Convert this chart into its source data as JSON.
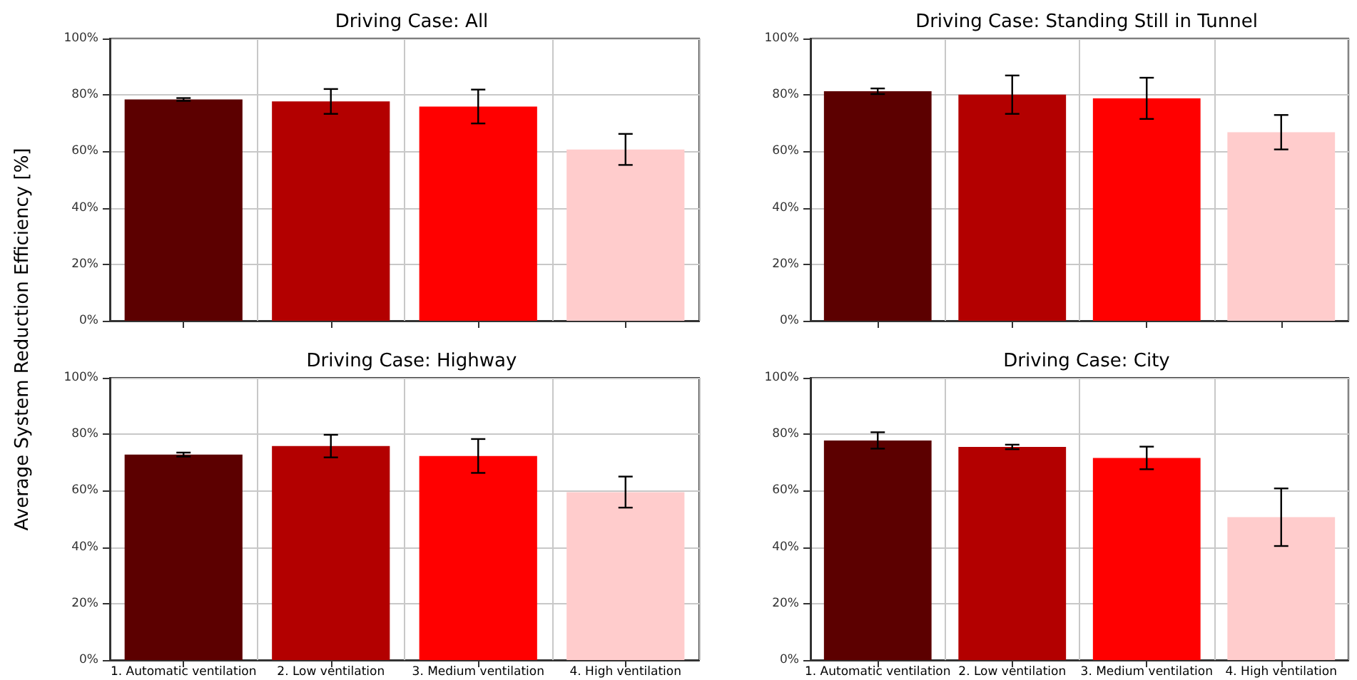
{
  "chart_data": [
    {
      "type": "bar",
      "title": "Driving Case: All",
      "ylabel": "Average System Reduction Efficiency [%]",
      "categories": [
        null,
        null,
        null,
        null
      ],
      "values": [
        78.4,
        77.7,
        75.9,
        60.7
      ],
      "errors": [
        0.5,
        4.4,
        6,
        5.5
      ],
      "colors": [
        "#5c0000",
        "#b30000",
        "#ff0000",
        "#ffcccc"
      ],
      "ylim": [
        0,
        100
      ],
      "yticks": [
        {
          "value": 0,
          "label": "0%"
        },
        {
          "value": 20,
          "label": "20%"
        },
        {
          "value": 40,
          "label": "40%"
        },
        {
          "value": 60,
          "label": "60%"
        },
        {
          "value": 80,
          "label": "80%"
        },
        {
          "value": 100,
          "label": "100%"
        }
      ],
      "grid": true
    },
    {
      "type": "bar",
      "title": "Driving Case: Standing Still in Tunnel",
      "categories": [
        null,
        null,
        null,
        null
      ],
      "values": [
        81.3,
        80.1,
        78.8,
        66.8
      ],
      "errors": [
        1,
        6.8,
        7.3,
        6.1
      ],
      "colors": [
        "#5c0000",
        "#b30000",
        "#ff0000",
        "#ffcccc"
      ],
      "ylim": [
        0,
        100
      ],
      "yticks": [
        {
          "value": 0,
          "label": "0%"
        },
        {
          "value": 20,
          "label": "20%"
        },
        {
          "value": 40,
          "label": "40%"
        },
        {
          "value": 60,
          "label": "60%"
        },
        {
          "value": 80,
          "label": "80%"
        },
        {
          "value": 100,
          "label": "100%"
        }
      ],
      "grid": true
    },
    {
      "type": "bar",
      "title": "Driving Case: Highway",
      "categories": [
        "1. Automatic ventilation",
        "2. Low ventilation",
        "3. Medium ventilation",
        "4. High ventilation"
      ],
      "values": [
        72.8,
        75.8,
        72.3,
        59.5
      ],
      "errors": [
        0.7,
        4,
        6,
        5.5
      ],
      "colors": [
        "#5c0000",
        "#b30000",
        "#ff0000",
        "#ffcccc"
      ],
      "ylim": [
        0,
        100
      ],
      "yticks": [
        {
          "value": 0,
          "label": "0%"
        },
        {
          "value": 20,
          "label": "20%"
        },
        {
          "value": 40,
          "label": "40%"
        },
        {
          "value": 60,
          "label": "60%"
        },
        {
          "value": 80,
          "label": "80%"
        },
        {
          "value": 100,
          "label": "100%"
        }
      ],
      "grid": true
    },
    {
      "type": "bar",
      "title": "Driving Case: City",
      "categories": [
        "1. Automatic ventilation",
        "2. Low ventilation",
        "3. Medium ventilation",
        "4. High ventilation"
      ],
      "values": [
        77.8,
        75.5,
        71.6,
        50.6
      ],
      "errors": [
        2.9,
        0.8,
        4,
        10.2
      ],
      "colors": [
        "#5c0000",
        "#b30000",
        "#ff0000",
        "#ffcccc"
      ],
      "ylim": [
        0,
        100
      ],
      "yticks": [
        {
          "value": 0,
          "label": "0%"
        },
        {
          "value": 20,
          "label": "20%"
        },
        {
          "value": 40,
          "label": "40%"
        },
        {
          "value": 60,
          "label": "60%"
        },
        {
          "value": 80,
          "label": "80%"
        },
        {
          "value": 100,
          "label": "100%"
        }
      ],
      "grid": true
    }
  ]
}
